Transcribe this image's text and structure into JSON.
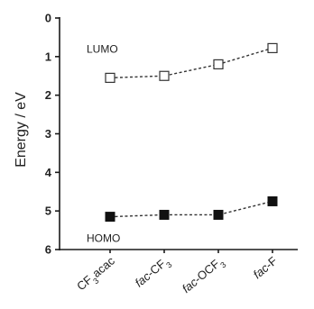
{
  "chart_data": {
    "type": "line",
    "ylabel": "Energy / eV",
    "ylim": [
      0,
      6
    ],
    "y_inverted": true,
    "yticks": [
      "0",
      "1",
      "2",
      "3",
      "4",
      "5",
      "6"
    ],
    "categories": [
      {
        "parts": [
          {
            "t": "CF"
          },
          {
            "t": "3",
            "sub": true
          },
          {
            "t": "acac"
          }
        ]
      },
      {
        "parts": [
          {
            "t": "fac",
            "italic": true
          },
          {
            "t": "-CF"
          },
          {
            "t": "3",
            "sub": true
          }
        ]
      },
      {
        "parts": [
          {
            "t": "fac",
            "italic": true
          },
          {
            "t": "-OCF"
          },
          {
            "t": "3",
            "sub": true
          }
        ]
      },
      {
        "parts": [
          {
            "t": "fac",
            "italic": true
          },
          {
            "t": "-F"
          }
        ]
      }
    ],
    "series": [
      {
        "marker": "open-square",
        "color": "#333333",
        "values": [
          1.55,
          1.5,
          1.2,
          0.78
        ]
      },
      {
        "marker": "filled-square",
        "color": "#111111",
        "values": [
          5.15,
          5.1,
          5.1,
          4.75
        ]
      }
    ],
    "annotations": [
      {
        "text": "LUMO",
        "near_series": 0
      },
      {
        "text": "HOMO",
        "near_series": 1
      }
    ],
    "grid": false,
    "legend": "none"
  }
}
